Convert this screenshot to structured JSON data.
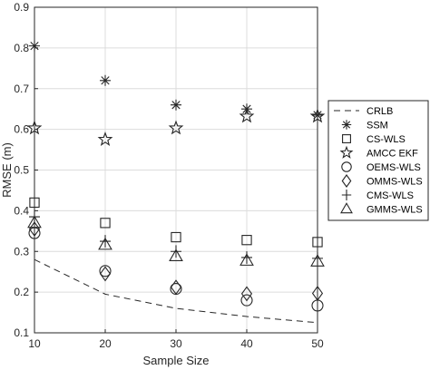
{
  "chart_data": {
    "type": "scatter",
    "xlabel": "Sample Size",
    "ylabel": "RMSE (m)",
    "xlim": [
      10,
      50
    ],
    "ylim": [
      0.1,
      0.9
    ],
    "xticks": [
      10,
      20,
      30,
      40,
      50
    ],
    "yticks": [
      0.1,
      0.2,
      0.3,
      0.4,
      0.5,
      0.6,
      0.7,
      0.8,
      0.9
    ],
    "grid": true,
    "legend_position": "right",
    "x": [
      10,
      20,
      30,
      40,
      50
    ],
    "series": [
      {
        "name": "CRLB",
        "marker": "dashed-line",
        "values": [
          0.28,
          0.195,
          0.16,
          0.14,
          0.125
        ]
      },
      {
        "name": "SSM",
        "marker": "asterisk",
        "values": [
          0.805,
          0.72,
          0.66,
          0.65,
          0.635
        ]
      },
      {
        "name": "CS-WLS",
        "marker": "square",
        "values": [
          0.42,
          0.37,
          0.335,
          0.328,
          0.323
        ]
      },
      {
        "name": "AMCC EKF",
        "marker": "pentagram",
        "values": [
          0.603,
          0.575,
          0.603,
          0.632,
          0.632
        ]
      },
      {
        "name": "OEMS-WLS",
        "marker": "circle",
        "values": [
          0.345,
          0.252,
          0.208,
          0.18,
          0.167
        ]
      },
      {
        "name": "OMMS-WLS",
        "marker": "diamond",
        "values": [
          0.355,
          0.245,
          0.212,
          0.196,
          0.197
        ]
      },
      {
        "name": "CMS-WLS",
        "marker": "plus",
        "values": [
          0.385,
          0.325,
          0.3,
          0.285,
          0.283
        ]
      },
      {
        "name": "GMMS-WLS",
        "marker": "triangle",
        "values": [
          0.37,
          0.316,
          0.288,
          0.277,
          0.275
        ]
      }
    ]
  }
}
